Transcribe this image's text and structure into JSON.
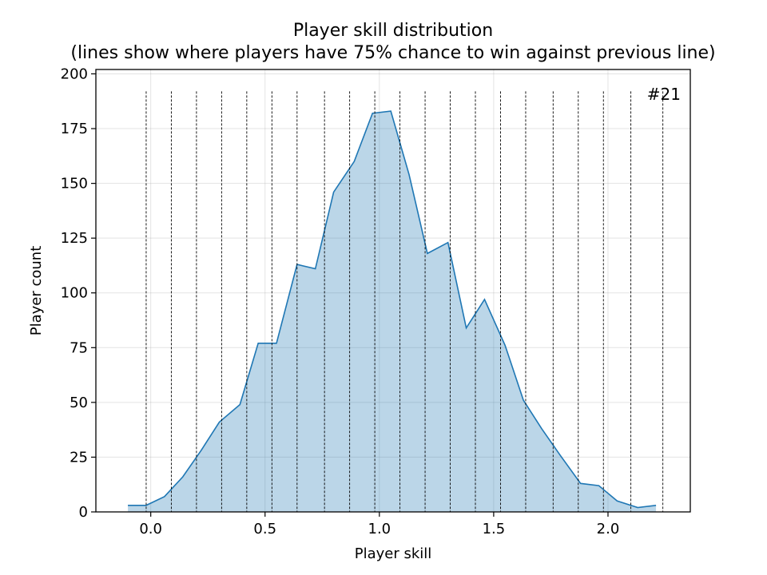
{
  "chart_data": {
    "type": "area",
    "title": "Player skill distribution",
    "subtitle": "(lines show where players have 75% chance to win against previous line)",
    "xlabel": "Player skill",
    "ylabel": "Player count",
    "xlim": [
      -0.24,
      2.36
    ],
    "ylim": [
      0,
      202
    ],
    "xticks": [
      0.0,
      0.5,
      1.0,
      1.5,
      2.0
    ],
    "xtick_labels": [
      "0.0",
      "0.5",
      "1.0",
      "1.5",
      "2.0"
    ],
    "yticks": [
      0,
      25,
      50,
      75,
      100,
      125,
      150,
      175,
      200
    ],
    "ytick_labels": [
      "0",
      "25",
      "50",
      "75",
      "100",
      "125",
      "150",
      "175",
      "200"
    ],
    "grid": true,
    "annotation": "#21",
    "series": [
      {
        "color": "#1f77b4",
        "fill_color": "#1f77b4",
        "fill_opacity": 0.3,
        "x": [
          -0.1,
          -0.02,
          0.06,
          0.14,
          0.22,
          0.3,
          0.39,
          0.47,
          0.55,
          0.64,
          0.72,
          0.8,
          0.89,
          0.97,
          1.05,
          1.13,
          1.21,
          1.3,
          1.38,
          1.46,
          1.55,
          1.63,
          1.71,
          1.79,
          1.88,
          1.96,
          2.04,
          2.13,
          2.21
        ],
        "y": [
          3,
          3,
          7,
          16,
          28,
          41,
          49,
          77,
          77,
          113,
          111,
          146,
          160,
          182,
          183,
          154,
          118,
          123,
          84,
          97,
          76,
          51,
          38,
          26,
          13,
          12,
          5,
          2,
          3
        ]
      }
    ],
    "vlines": {
      "style": "dashed",
      "color": "#000000",
      "y_top": 192,
      "x": [
        -0.02,
        0.09,
        0.2,
        0.31,
        0.42,
        0.53,
        0.64,
        0.76,
        0.87,
        0.98,
        1.09,
        1.2,
        1.31,
        1.42,
        1.53,
        1.64,
        1.76,
        1.87,
        1.98,
        2.1,
        2.24
      ]
    }
  }
}
